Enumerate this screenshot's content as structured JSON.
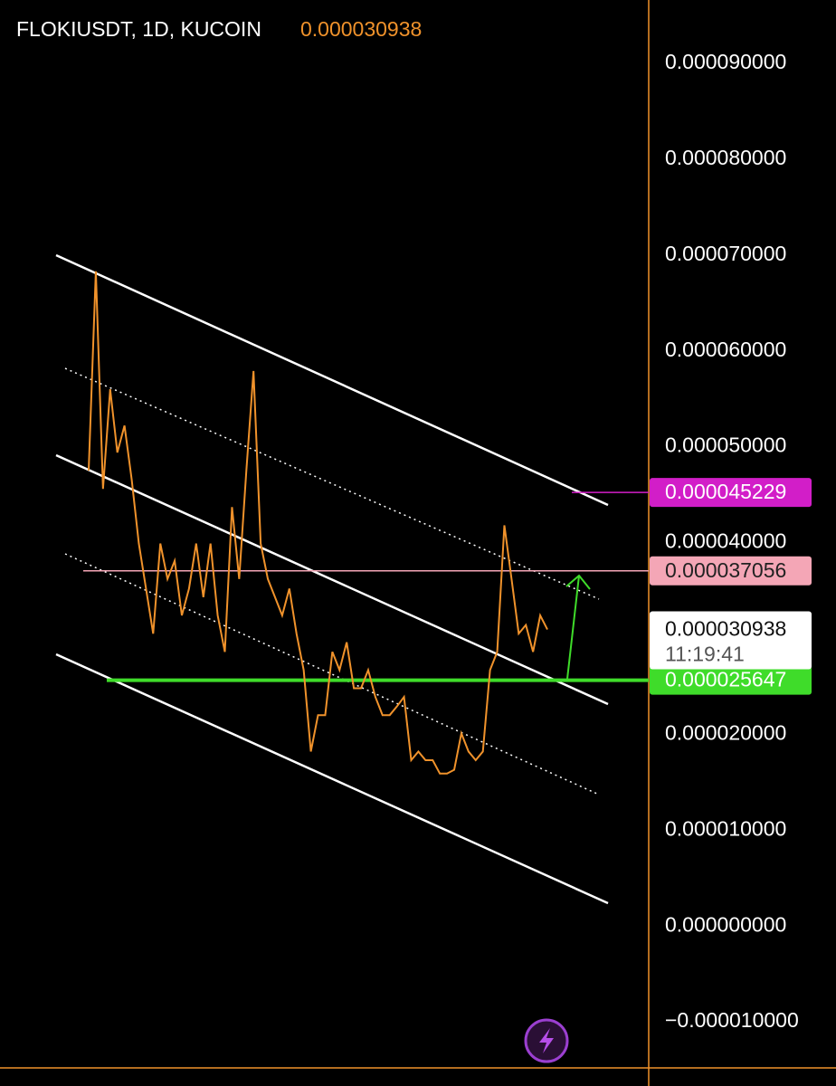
{
  "chart_data": {
    "type": "line",
    "title": "FLOKIUSDT, 1D, KUCOIN",
    "last_price": 3.0938e-05,
    "countdown": "11:19:41",
    "series": [
      {
        "color": "#f0922b",
        "values": [
          4.75e-05,
          6.83e-05,
          4.56e-05,
          5.6e-05,
          4.94e-05,
          5.22e-05,
          4.66e-05,
          3.99e-05,
          3.52e-05,
          3.05e-05,
          3.99e-05,
          3.62e-05,
          3.81e-05,
          3.24e-05,
          3.52e-05,
          3.99e-05,
          3.43e-05,
          3.99e-05,
          3.24e-05,
          2.86e-05,
          4.37e-05,
          3.62e-05,
          4.75e-05,
          5.79e-05,
          3.99e-05,
          3.62e-05,
          3.43e-05,
          3.24e-05,
          3.52e-05,
          3.05e-05,
          2.67e-05,
          1.82e-05,
          2.2e-05,
          2.2e-05,
          2.86e-05,
          2.67e-05,
          2.96e-05,
          2.48e-05,
          2.48e-05,
          2.67e-05,
          2.39e-05,
          2.2e-05,
          2.2e-05,
          2.29e-05,
          2.39e-05,
          1.73e-05,
          1.82e-05,
          1.73e-05,
          1.73e-05,
          1.59e-05,
          1.59e-05,
          1.63e-05,
          2.01e-05,
          1.82e-05,
          1.73e-05,
          1.82e-05,
          2.67e-05,
          2.86e-05,
          4.18e-05,
          3.62e-05,
          3.05e-05,
          3.14e-05,
          2.86e-05,
          3.24e-05,
          3.0938e-05
        ]
      }
    ],
    "levels": {
      "values": [
        4.5229e-05,
        3.7056e-05,
        2.5647e-05
      ],
      "colors": [
        "#d21ec8",
        "#f4a6b6",
        "#3fdc2a"
      ]
    },
    "ylim": [
      -1.48e-05,
      9.66e-05
    ],
    "yticks": [
      {
        "value": 9e-05,
        "label": "0.000090000"
      },
      {
        "value": 8e-05,
        "label": "0.000080000"
      },
      {
        "value": 7e-05,
        "label": "0.000070000"
      },
      {
        "value": 6e-05,
        "label": "0.000060000"
      },
      {
        "value": 5e-05,
        "label": "0.000050000"
      },
      {
        "value": 4e-05,
        "label": "0.000040000"
      },
      {
        "value": 2e-05,
        "label": "0.000020000"
      },
      {
        "value": 1e-05,
        "label": "0.000010000"
      },
      {
        "value": 0,
        "label": "0.000000000"
      },
      {
        "value": -1e-05,
        "label": "−0.000010000"
      }
    ]
  }
}
